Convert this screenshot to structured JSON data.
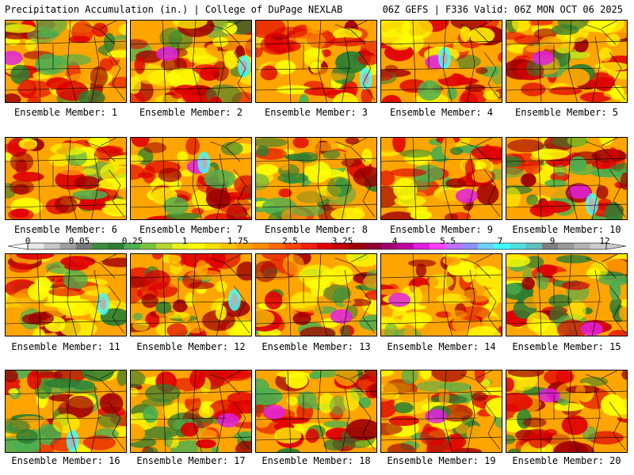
{
  "header": {
    "left": "Precipitation Accumulation (in.) | College of DuPage NEXLAB",
    "right": "06Z GEFS | F336 Valid: 06Z MON OCT 06 2025"
  },
  "label_prefix": "Ensemble Member: ",
  "members": [
    {
      "id": 1,
      "label": "Ensemble Member: 1"
    },
    {
      "id": 2,
      "label": "Ensemble Member: 2"
    },
    {
      "id": 3,
      "label": "Ensemble Member: 3"
    },
    {
      "id": 4,
      "label": "Ensemble Member: 4"
    },
    {
      "id": 5,
      "label": "Ensemble Member: 5"
    },
    {
      "id": 6,
      "label": "Ensemble Member: 6"
    },
    {
      "id": 7,
      "label": "Ensemble Member: 7"
    },
    {
      "id": 8,
      "label": "Ensemble Member: 8"
    },
    {
      "id": 9,
      "label": "Ensemble Member: 9"
    },
    {
      "id": 10,
      "label": "Ensemble Member: 10"
    },
    {
      "id": 11,
      "label": "Ensemble Member: 11"
    },
    {
      "id": 12,
      "label": "Ensemble Member: 12"
    },
    {
      "id": 13,
      "label": "Ensemble Member: 13"
    },
    {
      "id": 14,
      "label": "Ensemble Member: 14"
    },
    {
      "id": 15,
      "label": "Ensemble Member: 15"
    },
    {
      "id": 16,
      "label": "Ensemble Member: 16"
    },
    {
      "id": 17,
      "label": "Ensemble Member: 17"
    },
    {
      "id": 18,
      "label": "Ensemble Member: 18"
    },
    {
      "id": 19,
      "label": "Ensemble Member: 19"
    },
    {
      "id": 20,
      "label": "Ensemble Member: 20"
    }
  ],
  "colorbar": {
    "tick_labels": [
      "0",
      "0.05",
      "0.25",
      "1",
      "1.75",
      "2.5",
      "3.25",
      "4",
      "5.5",
      "7",
      "9",
      "12"
    ],
    "colors": [
      "#e8e8e8",
      "#c8c8c8",
      "#a0a0a0",
      "#787878",
      "#3c8c3c",
      "#2e7d32",
      "#4caf50",
      "#7cc242",
      "#b8d630",
      "#e8f020",
      "#ffff00",
      "#ffe100",
      "#ffc400",
      "#ffa500",
      "#ff8c00",
      "#ff6a00",
      "#ff4500",
      "#f02010",
      "#e00000",
      "#c00000",
      "#a00000",
      "#900030",
      "#a00070",
      "#c000a0",
      "#e020e0",
      "#ff40ff",
      "#c070ff",
      "#9090ff",
      "#70d0ff",
      "#40ffff",
      "#50e0e0",
      "#60c0c0",
      "#808080",
      "#9a9a9a",
      "#b4b4b4",
      "#cccccc"
    ]
  },
  "palette": {
    "green_dark": "#2e7d32",
    "green": "#4caf50",
    "yellow": "#ffff00",
    "orange": "#ffa500",
    "red": "#e00000",
    "darkred": "#a00000",
    "magenta": "#e020e0",
    "cyan": "#40ffff",
    "gray": "#b4b4b4"
  }
}
